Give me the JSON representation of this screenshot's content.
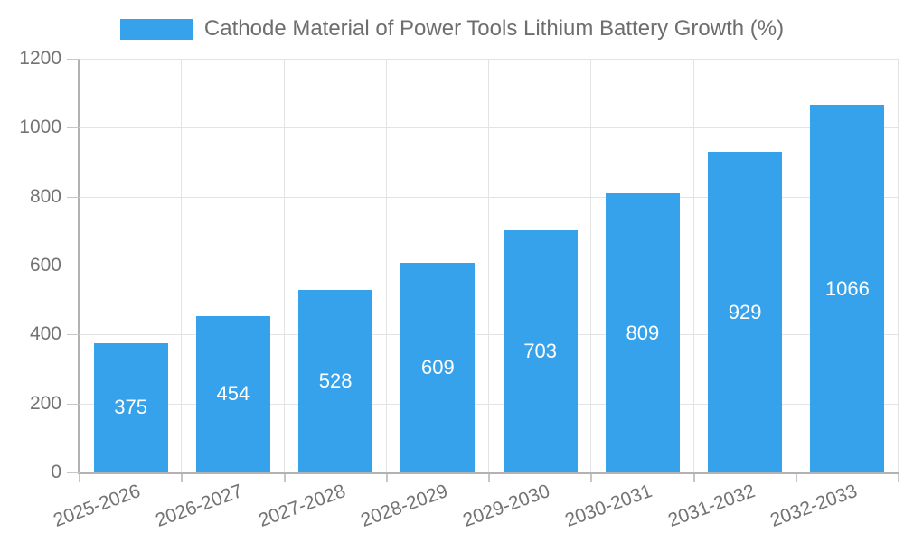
{
  "chart_data": {
    "type": "bar",
    "title": "Cathode Material of Power Tools Lithium Battery Growth (%)",
    "categories": [
      "2025-2026",
      "2026-2027",
      "2027-2028",
      "2028-2029",
      "2029-2030",
      "2030-2031",
      "2031-2032",
      "2032-2033"
    ],
    "values": [
      375,
      454,
      528,
      609,
      703,
      809,
      929,
      1066
    ],
    "xlabel": "",
    "ylabel": "",
    "ylim": [
      0,
      1200
    ],
    "ytick_step": 200,
    "ytick_labels": [
      "0",
      "200",
      "400",
      "600",
      "800",
      "1000",
      "1200"
    ],
    "grid": true,
    "legend_position": "top",
    "value_labels_shown": true,
    "value_label_position": "center",
    "x_label_rotation_deg": -20,
    "colors": {
      "bar": "#36A2EB",
      "value_label": "#ffffff",
      "axis_text": "#737373",
      "title_text": "#6e6e6e",
      "grid_line": "#e3e3e3",
      "axis_line": "#b2b2b2",
      "tick_mark": "#c6c6c6",
      "background": "#ffffff"
    }
  }
}
